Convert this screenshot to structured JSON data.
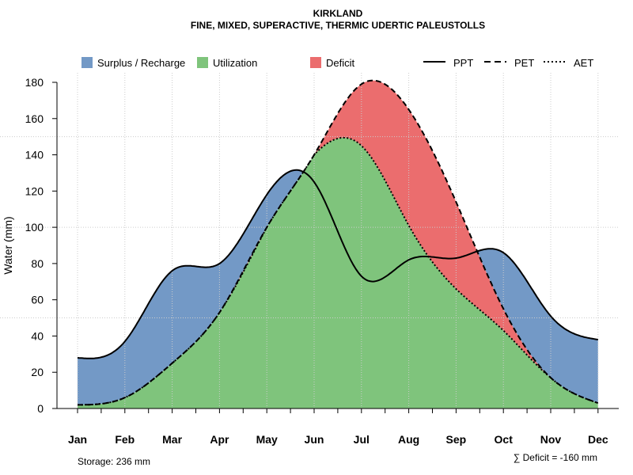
{
  "chart_data": {
    "type": "area",
    "title": "KIRKLAND",
    "subtitle": "FINE, MIXED, SUPERACTIVE, THERMIC UDERTIC PALEUSTOLLS",
    "ylabel": "Water (mm)",
    "xlabel": "",
    "ylim": [
      0,
      180
    ],
    "yticks": [
      0,
      20,
      40,
      60,
      80,
      100,
      120,
      140,
      160,
      180
    ],
    "ygrid": [
      50,
      100,
      150
    ],
    "categories": [
      "Jan",
      "Feb",
      "Mar",
      "Apr",
      "May",
      "Jun",
      "Jul",
      "Aug",
      "Sep",
      "Oct",
      "Nov",
      "Dec"
    ],
    "series": [
      {
        "name": "PPT",
        "style": "solid",
        "values": [
          28,
          37,
          76,
          80,
          118,
          125,
          73,
          82,
          83,
          86,
          51,
          38
        ]
      },
      {
        "name": "PET",
        "style": "dashed",
        "values": [
          2,
          6,
          25,
          53,
          100,
          140,
          179,
          165,
          114,
          55,
          17,
          3
        ]
      },
      {
        "name": "AET",
        "style": "dotted",
        "values": [
          2,
          6,
          25,
          53,
          100,
          140,
          145,
          101,
          66,
          43,
          17,
          3
        ]
      }
    ],
    "fills": [
      {
        "name": "Surplus / Recharge",
        "color": "#7399C6"
      },
      {
        "name": "Utilization",
        "color": "#7FC47C"
      },
      {
        "name": "Deficit",
        "color": "#EB6D6E"
      }
    ],
    "legend_placement": "top",
    "annotations": {
      "storage": "Storage: 236 mm",
      "deficit": "∑ Deficit = -160 mm"
    }
  }
}
